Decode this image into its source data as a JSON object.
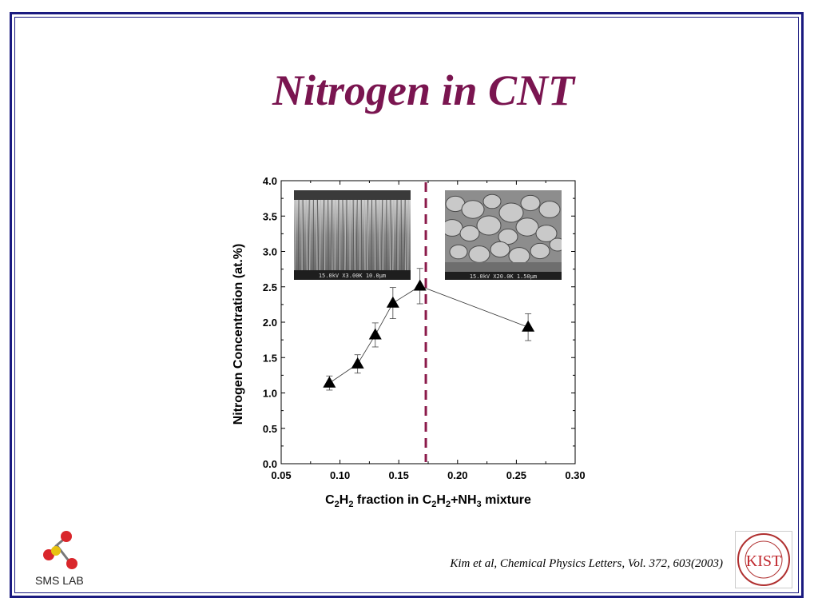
{
  "slide": {
    "title": "Nitrogen in CNT",
    "citation": "Kim et al, Chemical Physics Letters, Vol. 372, 603(2003)",
    "logo_left_text": "SMS LAB",
    "logo_right_text": "KIST",
    "logo_right_ring_text": "Korea Institute of Science and Technology",
    "title_color": "#7a1550",
    "frame_color": "#1a1a80"
  },
  "chart_data": {
    "type": "scatter",
    "ylabel": "Nitrogen Concentration (at.%)",
    "xlabel_parts": [
      {
        "t": "C",
        "sub": false
      },
      {
        "t": "2",
        "sub": true
      },
      {
        "t": "H",
        "sub": false
      },
      {
        "t": "2",
        "sub": true
      },
      {
        "t": " fraction in C",
        "sub": false
      },
      {
        "t": "2",
        "sub": true
      },
      {
        "t": "H",
        "sub": false
      },
      {
        "t": "2",
        "sub": true
      },
      {
        "t": "+NH",
        "sub": false
      },
      {
        "t": "3",
        "sub": true
      },
      {
        "t": " mixture",
        "sub": false
      }
    ],
    "xlim": [
      0.05,
      0.3
    ],
    "ylim": [
      0.0,
      4.0
    ],
    "xticks": [
      "0.05",
      "0.10",
      "0.15",
      "0.20",
      "0.25",
      "0.30"
    ],
    "yticks": [
      "0.0",
      "0.5",
      "1.0",
      "1.5",
      "2.0",
      "2.5",
      "3.0",
      "3.5",
      "4.0"
    ],
    "series": [
      {
        "x": [
          0.091,
          0.115,
          0.13,
          0.145,
          0.168,
          0.26
        ],
        "y": [
          1.14,
          1.41,
          1.82,
          2.27,
          2.51,
          1.93
        ],
        "yerr": [
          0.1,
          0.13,
          0.17,
          0.22,
          0.25,
          0.19
        ],
        "marker": "triangle",
        "color": "#000000"
      }
    ],
    "threshold_x": 0.173,
    "threshold_color": "#8b1a4a",
    "insets": [
      {
        "caption": "15.0kV X3.00K 10.0µm",
        "kind": "aligned-nanotubes"
      },
      {
        "caption": "15.0kV X20.0K 1.50µm",
        "kind": "grainy-particles"
      }
    ]
  }
}
